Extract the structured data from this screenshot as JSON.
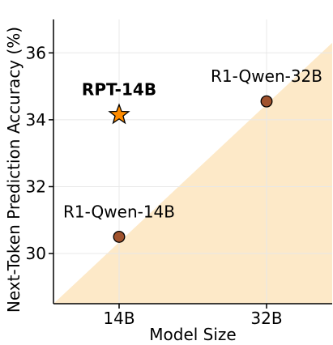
{
  "chart_data": {
    "type": "scatter",
    "xlabel": "Model Size",
    "ylabel": "Next-Token Prediction Accuracy (%)",
    "x_categories": [
      "14B",
      "32B"
    ],
    "ylim": [
      28.5,
      37.0
    ],
    "yticks": [
      30,
      32,
      34,
      36
    ],
    "grid": true,
    "colors": {
      "region": "#fde9c8",
      "baseline_marker": "#a0522d",
      "highlight_marker": "#ff8c00",
      "grid": "#e8e8e8"
    },
    "points": [
      {
        "label": "R1-Qwen-14B",
        "x": "14B",
        "y": 30.5,
        "marker": "circle",
        "emphasis": false
      },
      {
        "label": "R1-Qwen-32B",
        "x": "32B",
        "y": 34.55,
        "marker": "circle",
        "emphasis": false
      },
      {
        "label": "RPT-14B",
        "x": "14B",
        "y": 34.15,
        "marker": "star",
        "emphasis": true
      }
    ],
    "shaded_region": {
      "from": {
        "x": "below-14B",
        "y": 28.5
      },
      "to": {
        "x": "above-32B",
        "y": 36.3
      }
    }
  }
}
